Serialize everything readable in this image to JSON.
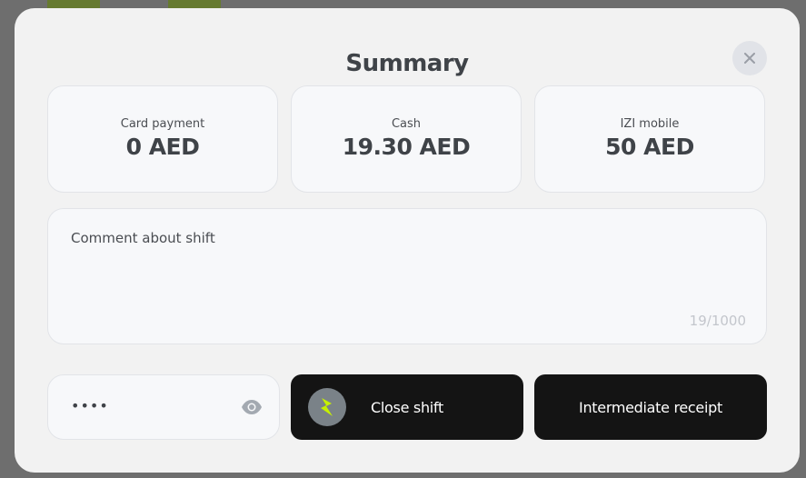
{
  "title": "Summary",
  "cards": [
    {
      "label": "Card payment",
      "value": "0 AED"
    },
    {
      "label": "Cash",
      "value": "19.30 AED"
    },
    {
      "label": "IZI mobile",
      "value": "50 AED"
    }
  ],
  "comment": {
    "placeholder": "Comment about shift",
    "counter": "19/1000"
  },
  "password": {
    "value": "••••"
  },
  "buttons": {
    "close_shift": "Close shift",
    "intermediate_receipt": "Intermediate receipt"
  },
  "colors": {
    "accent": "#c6f000",
    "button_bg": "#141414"
  },
  "icons": {
    "close": "close-icon",
    "eye": "eye-icon",
    "bolt": "lightning-icon"
  }
}
